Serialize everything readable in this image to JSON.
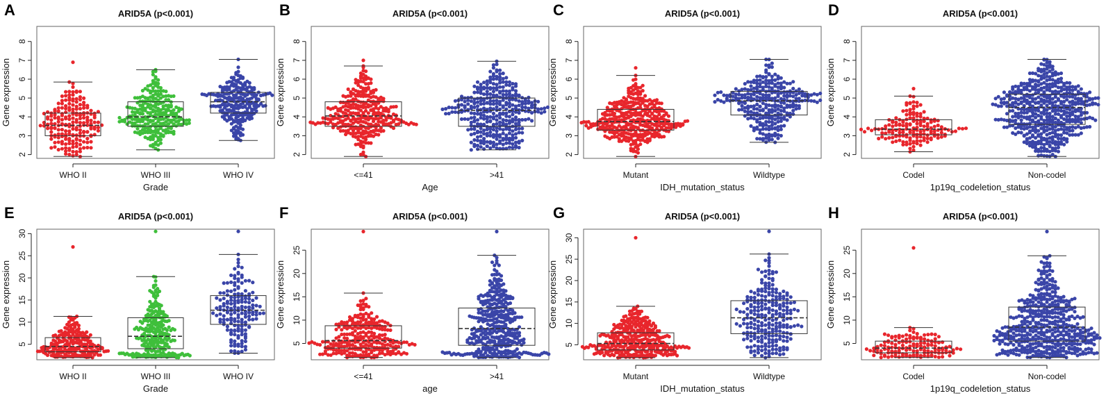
{
  "figure": {
    "colors": {
      "red": "#e8262c",
      "green": "#3fbf3b",
      "blue": "#3a45a8",
      "box": "#333333"
    },
    "panel_letters": [
      "A",
      "B",
      "C",
      "D",
      "E",
      "F",
      "G",
      "H"
    ]
  },
  "chart_data": [
    {
      "panel": "A",
      "type": "beeswarm-box",
      "title": "ARID5A (p<0.001)",
      "xlabel": "Grade",
      "ylabel": "Gene expression",
      "ylim": [
        1.8,
        8.8
      ],
      "yticks": [
        2,
        3,
        4,
        5,
        6,
        7,
        8
      ],
      "categories": [
        "WHO II",
        "WHO III",
        "WHO IV"
      ],
      "colors": [
        "#e8262c",
        "#3fbf3b",
        "#3a45a8"
      ],
      "boxes": [
        {
          "min": 1.9,
          "q1": 3.0,
          "median": 3.55,
          "q3": 4.2,
          "max": 5.85,
          "n": 200,
          "outliers": [
            6.9
          ]
        },
        {
          "min": 2.25,
          "q1": 3.5,
          "median": 4.0,
          "q3": 4.8,
          "max": 6.5,
          "n": 260,
          "outliers": []
        },
        {
          "min": 2.75,
          "q1": 4.2,
          "median": 4.8,
          "q3": 5.3,
          "max": 7.05,
          "n": 240,
          "outliers": []
        }
      ]
    },
    {
      "panel": "B",
      "type": "beeswarm-box",
      "title": "ARID5A (p<0.001)",
      "xlabel": "Age",
      "ylabel": "Gene expression",
      "ylim": [
        1.8,
        8.8
      ],
      "yticks": [
        2,
        3,
        4,
        5,
        6,
        7,
        8
      ],
      "categories": [
        "<=41",
        ">41"
      ],
      "colors": [
        "#e8262c",
        "#3a45a8"
      ],
      "boxes": [
        {
          "min": 1.9,
          "q1": 3.5,
          "median": 4.05,
          "q3": 4.8,
          "max": 6.7,
          "n": 330,
          "outliers": [
            7.0
          ]
        },
        {
          "min": 2.25,
          "q1": 3.5,
          "median": 4.35,
          "q3": 5.0,
          "max": 6.95,
          "n": 380,
          "outliers": []
        }
      ]
    },
    {
      "panel": "C",
      "type": "beeswarm-box",
      "title": "ARID5A (p<0.001)",
      "xlabel": "IDH_mutation_status",
      "ylabel": "Gene expression",
      "ylim": [
        1.8,
        8.8
      ],
      "yticks": [
        2,
        3,
        4,
        5,
        6,
        7,
        8
      ],
      "categories": [
        "Mutant",
        "Wildtype"
      ],
      "colors": [
        "#e8262c",
        "#3a45a8"
      ],
      "boxes": [
        {
          "min": 1.9,
          "q1": 3.3,
          "median": 3.75,
          "q3": 4.4,
          "max": 6.2,
          "n": 380,
          "outliers": [
            6.6
          ]
        },
        {
          "min": 2.65,
          "q1": 4.1,
          "median": 4.85,
          "q3": 5.35,
          "max": 7.05,
          "n": 320,
          "outliers": []
        }
      ]
    },
    {
      "panel": "D",
      "type": "beeswarm-box",
      "title": "ARID5A (p<0.001)",
      "xlabel": "1p19q_codeletion_status",
      "ylabel": "Gene expression",
      "ylim": [
        1.8,
        8.8
      ],
      "yticks": [
        2,
        3,
        4,
        5,
        6,
        7,
        8
      ],
      "categories": [
        "Codel",
        "Non-codel"
      ],
      "colors": [
        "#e8262c",
        "#3a45a8"
      ],
      "boxes": [
        {
          "min": 2.15,
          "q1": 3.05,
          "median": 3.35,
          "q3": 3.85,
          "max": 5.1,
          "n": 160,
          "outliers": [
            5.5
          ]
        },
        {
          "min": 1.9,
          "q1": 3.6,
          "median": 4.5,
          "q3": 5.2,
          "max": 7.05,
          "n": 540,
          "outliers": []
        }
      ]
    },
    {
      "panel": "E",
      "type": "beeswarm-box",
      "title": "ARID5A (p<0.001)",
      "xlabel": "Grade",
      "ylabel": "Gene expression",
      "ylim": [
        1.5,
        31
      ],
      "yticks": [
        5,
        10,
        15,
        20,
        25,
        30
      ],
      "categories": [
        "WHO II",
        "WHO III",
        "WHO IV"
      ],
      "colors": [
        "#e8262c",
        "#3fbf3b",
        "#3a45a8"
      ],
      "boxes": [
        {
          "min": 2,
          "q1": 3.3,
          "median": 4.5,
          "q3": 6.5,
          "max": 11.3,
          "n": 220,
          "outliers": [
            27
          ]
        },
        {
          "min": 2,
          "q1": 4.0,
          "median": 6.8,
          "q3": 11,
          "max": 20.3,
          "n": 260,
          "outliers": [
            30.5
          ]
        },
        {
          "min": 3,
          "q1": 9.5,
          "median": 12.7,
          "q3": 16,
          "max": 25.3,
          "n": 170,
          "outliers": [
            30.5
          ]
        }
      ]
    },
    {
      "panel": "F",
      "type": "beeswarm-box",
      "title": "ARID5A (p<0.001)",
      "xlabel": "age",
      "ylabel": "Gene expression",
      "ylim": [
        1.5,
        29.5
      ],
      "yticks": [
        5,
        10,
        15,
        20,
        25
      ],
      "categories": [
        "<=41",
        ">41"
      ],
      "colors": [
        "#e8262c",
        "#3a45a8"
      ],
      "boxes": [
        {
          "min": 2,
          "q1": 4.0,
          "median": 5.6,
          "q3": 8.8,
          "max": 15.8,
          "n": 280,
          "outliers": [
            29
          ]
        },
        {
          "min": 2,
          "q1": 4.6,
          "median": 8.2,
          "q3": 12.6,
          "max": 23.9,
          "n": 400,
          "outliers": [
            29
          ]
        }
      ]
    },
    {
      "panel": "G",
      "type": "beeswarm-box",
      "title": "ARID5A (p<0.001)",
      "xlabel": "IDH_mutation_status",
      "ylabel": "Gene expression",
      "ylim": [
        1.5,
        32
      ],
      "yticks": [
        5,
        10,
        15,
        20,
        25,
        30
      ],
      "categories": [
        "Mutant",
        "Wildtype"
      ],
      "colors": [
        "#e8262c",
        "#3a45a8"
      ],
      "boxes": [
        {
          "min": 2,
          "q1": 3.8,
          "median": 5.3,
          "q3": 7.8,
          "max": 14,
          "n": 360,
          "outliers": [
            30
          ]
        },
        {
          "min": 2,
          "q1": 7.6,
          "median": 11.3,
          "q3": 15.3,
          "max": 26.2,
          "n": 260,
          "outliers": [
            31.5
          ]
        }
      ]
    },
    {
      "panel": "H",
      "type": "beeswarm-box",
      "title": "ARID5A (p<0.001)",
      "xlabel": "1p19q_codeletion_status",
      "ylabel": "Gene expression",
      "ylim": [
        1.5,
        29.5
      ],
      "yticks": [
        5,
        10,
        15,
        20,
        25
      ],
      "categories": [
        "Codel",
        "Non-codel"
      ],
      "colors": [
        "#e8262c",
        "#3a45a8"
      ],
      "boxes": [
        {
          "min": 2,
          "q1": 3.0,
          "median": 4.0,
          "q3": 5.5,
          "max": 8.4,
          "n": 140,
          "outliers": [
            25.5
          ]
        },
        {
          "min": 2,
          "q1": 5.5,
          "median": 8.5,
          "q3": 12.8,
          "max": 23.8,
          "n": 520,
          "outliers": [
            29
          ]
        }
      ]
    }
  ]
}
